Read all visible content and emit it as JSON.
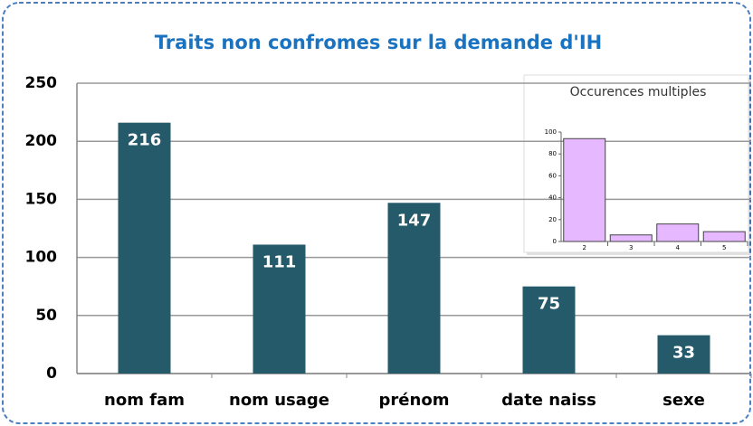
{
  "chart_data": [
    {
      "type": "bar",
      "title": "Traits non confromes sur la demande d'IH",
      "categories": [
        "nom fam",
        "nom usage",
        "prénom",
        "date naiss",
        "sexe"
      ],
      "values": [
        216,
        111,
        147,
        75,
        33
      ],
      "color": "#245a6a",
      "ylim": [
        0,
        250
      ],
      "yticks": [
        0,
        50,
        100,
        150,
        200,
        250
      ],
      "grid": true
    },
    {
      "type": "bar",
      "title": "Occurences multiples",
      "categories": [
        "2",
        "3",
        "4",
        "5"
      ],
      "values": [
        94,
        6,
        16,
        9
      ],
      "color": "#e6b8ff",
      "ylim": [
        0,
        100
      ],
      "yticks": [
        0,
        20,
        40,
        60,
        80,
        100
      ],
      "grid": false
    }
  ]
}
